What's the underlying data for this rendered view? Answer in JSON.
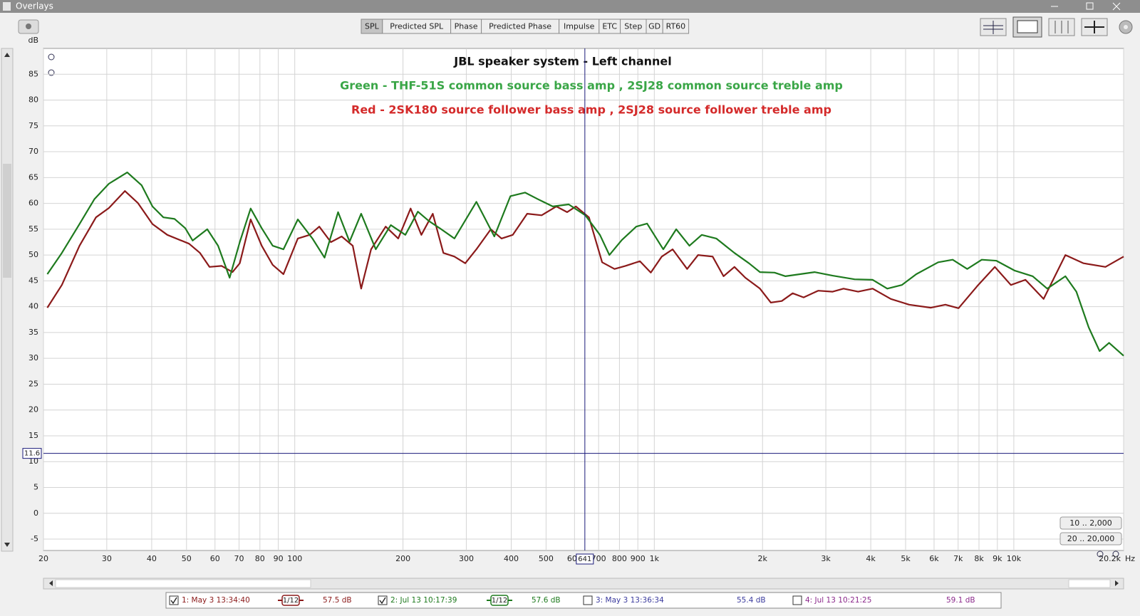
{
  "window": {
    "title": "Overlays",
    "tabs": [
      "SPL",
      "Predicted SPL",
      "Phase",
      "Predicted Phase",
      "Impulse",
      "ETC",
      "Step",
      "GD",
      "RT60"
    ],
    "active_tab": "SPL",
    "range_buttons": [
      "10 .. 2,000",
      "20 .. 20,000"
    ],
    "extra_traces": [
      {
        "name": "3: May 3 13:36:34",
        "level": "55.4 dB",
        "color": "#3b3b9e",
        "checked": false
      },
      {
        "name": "4: Jul 13 10:21:25",
        "level": "59.1 dB",
        "color": "#8c2a8c",
        "checked": false
      }
    ]
  },
  "chart_data": {
    "type": "line",
    "title": "JBL speaker system - Left channel",
    "annotations": [
      {
        "text": "Green - THF-51S common source bass amp , 2SJ28 common source treble amp",
        "color": "#3aa647"
      },
      {
        "text": "Red - 2SK180 source follower bass amp , 2SJ28 source follower treble amp",
        "color": "#d42a2a"
      }
    ],
    "y_unit": "dB",
    "x_unit": "Hz",
    "xscale": "log",
    "grid": true,
    "xlim": [
      20,
      20200
    ],
    "ylim": [
      -7.2,
      90
    ],
    "xticks": [
      20,
      30,
      40,
      50,
      60,
      70,
      80,
      90,
      100,
      200,
      300,
      400,
      500,
      600,
      700,
      800,
      900,
      {
        "value": 1000,
        "label": "1k"
      },
      {
        "value": 2000,
        "label": "2k"
      },
      {
        "value": 3000,
        "label": "3k"
      },
      {
        "value": 4000,
        "label": "4k"
      },
      {
        "value": 5000,
        "label": "5k"
      },
      {
        "value": 6000,
        "label": "6k"
      },
      {
        "value": 7000,
        "label": "7k"
      },
      {
        "value": 8000,
        "label": "8k"
      },
      {
        "value": 9000,
        "label": "9k"
      },
      {
        "value": 10000,
        "label": "10k"
      },
      {
        "value": 20200,
        "label": "20.2k"
      }
    ],
    "yticks": [
      85,
      80,
      75,
      70,
      65,
      60,
      55,
      50,
      45,
      40,
      35,
      30,
      25,
      20,
      15,
      10,
      5,
      0,
      -5
    ],
    "cursor": {
      "x": 641,
      "y": 11.6
    },
    "series": [
      {
        "name": "1: May 3 13:34:40",
        "color": "#8b1a1a",
        "checked": true,
        "smoothing": "1/12",
        "level": "57.5 dB",
        "x": [
          20.5,
          22.5,
          25.2,
          28,
          30.4,
          33.7,
          36.6,
          40.2,
          44.2,
          50.8,
          54.5,
          57.9,
          62.6,
          67.1,
          70.3,
          75.4,
          80.9,
          86.8,
          93,
          102,
          110,
          117,
          126,
          135,
          145,
          153,
          163,
          179,
          194,
          210,
          225,
          242,
          259,
          278,
          298,
          320,
          351,
          376,
          404,
          443,
          486,
          534,
          572,
          605,
          658,
          716,
          775,
          831,
          912,
          978,
          1049,
          1125,
          1234,
          1324,
          1453,
          1558,
          1671,
          1792,
          1967,
          2110,
          2262,
          2426,
          2602,
          2856,
          3134,
          3360,
          3690,
          4050,
          4550,
          5112,
          5880,
          6452,
          7016,
          7958,
          8856,
          9814,
          10772,
          12102,
          13916,
          15634,
          17980,
          20200
        ],
        "values": [
          39.8,
          44.2,
          51.8,
          57.3,
          59.1,
          62.4,
          60.1,
          56,
          53.9,
          52.2,
          50.4,
          47.7,
          47.9,
          46.7,
          48.4,
          56.9,
          51.8,
          48.1,
          46.3,
          53.2,
          53.9,
          55.5,
          52.5,
          53.6,
          51.8,
          43.5,
          51.1,
          55.5,
          53.2,
          59,
          53.9,
          58,
          50.4,
          49.7,
          48.4,
          51.1,
          55,
          53.2,
          53.9,
          58,
          57.7,
          59.4,
          58.3,
          59.4,
          57.3,
          48.6,
          47.3,
          47.9,
          48.8,
          46.6,
          49.7,
          51.1,
          47.3,
          50,
          49.7,
          45.9,
          47.7,
          45.6,
          43.5,
          40.8,
          41.1,
          42.6,
          41.8,
          43.1,
          42.9,
          43.5,
          42.9,
          43.5,
          41.5,
          40.4,
          39.8,
          40.4,
          39.7,
          44.2,
          47.7,
          44.2,
          45.2,
          41.5,
          50,
          48.4,
          47.7,
          49.7
        ]
      },
      {
        "name": "2: Jul 13 10:17:39",
        "color": "#1e7a1e",
        "checked": true,
        "smoothing": "1/12",
        "level": "57.6 dB",
        "x": [
          20.5,
          22.5,
          25.2,
          27.7,
          30.4,
          34.2,
          37.5,
          40.2,
          43.1,
          46.3,
          49.6,
          52,
          57.1,
          61.2,
          65.9,
          70.3,
          75.4,
          80.9,
          86.8,
          93,
          102,
          112,
          121,
          132,
          142,
          153,
          168,
          185,
          203,
          220,
          236,
          253,
          278,
          320,
          359,
          398,
          437,
          475,
          522,
          578,
          643,
          706,
          750,
          812,
          891,
          955,
          1059,
          1151,
          1252,
          1355,
          1487,
          1671,
          1834,
          1967,
          2160,
          2316,
          2542,
          2790,
          3134,
          3606,
          4050,
          4446,
          4880,
          5354,
          6158,
          6760,
          7418,
          8144,
          8940,
          10046,
          11284,
          12386,
          13916,
          14924,
          16154,
          17320,
          18404,
          20200
        ],
        "values": [
          46.3,
          50.4,
          56,
          60.8,
          63.8,
          66,
          63.5,
          59.4,
          57.3,
          57,
          55.2,
          52.8,
          55,
          51.8,
          45.6,
          52.5,
          59,
          55.2,
          51.8,
          51.1,
          56.9,
          53.2,
          49.5,
          58.3,
          52.6,
          58,
          51.1,
          55.8,
          53.9,
          58.4,
          56.6,
          55.2,
          53.2,
          60.3,
          53.6,
          61.4,
          62.1,
          60.8,
          59.4,
          59.8,
          57.7,
          53.9,
          50,
          52.9,
          55.5,
          56.1,
          51.1,
          55,
          51.8,
          53.9,
          53.2,
          50.4,
          48.4,
          46.7,
          46.6,
          45.9,
          46.3,
          46.7,
          46,
          45.3,
          45.2,
          43.5,
          44.2,
          46.3,
          48.6,
          49.1,
          47.3,
          49.1,
          48.9,
          47,
          45.9,
          43.5,
          45.9,
          42.9,
          36,
          31.4,
          33,
          30.5
        ]
      }
    ]
  }
}
